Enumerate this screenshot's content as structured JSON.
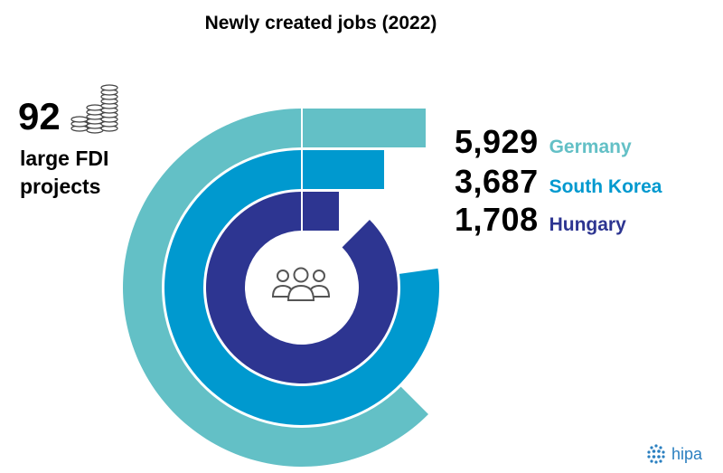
{
  "chart_data": {
    "type": "radial-bar",
    "title": "Newly created jobs (2022)",
    "categories": [
      "Germany",
      "South Korea",
      "Hungary"
    ],
    "values": [
      5929,
      3687,
      1708
    ],
    "value_labels": [
      "5,929",
      "3,687",
      "1,708"
    ],
    "colors": [
      "#63c0c6",
      "#0099cf",
      "#2d3591"
    ],
    "max_value": 6000
  },
  "callout": {
    "number": "92",
    "label_line1": "large FDI",
    "label_line2": "projects",
    "icon": "coin-stack-icon"
  },
  "center_icon": "people-group-icon",
  "logo": {
    "text": "hipa",
    "icon": "globe-icon"
  }
}
